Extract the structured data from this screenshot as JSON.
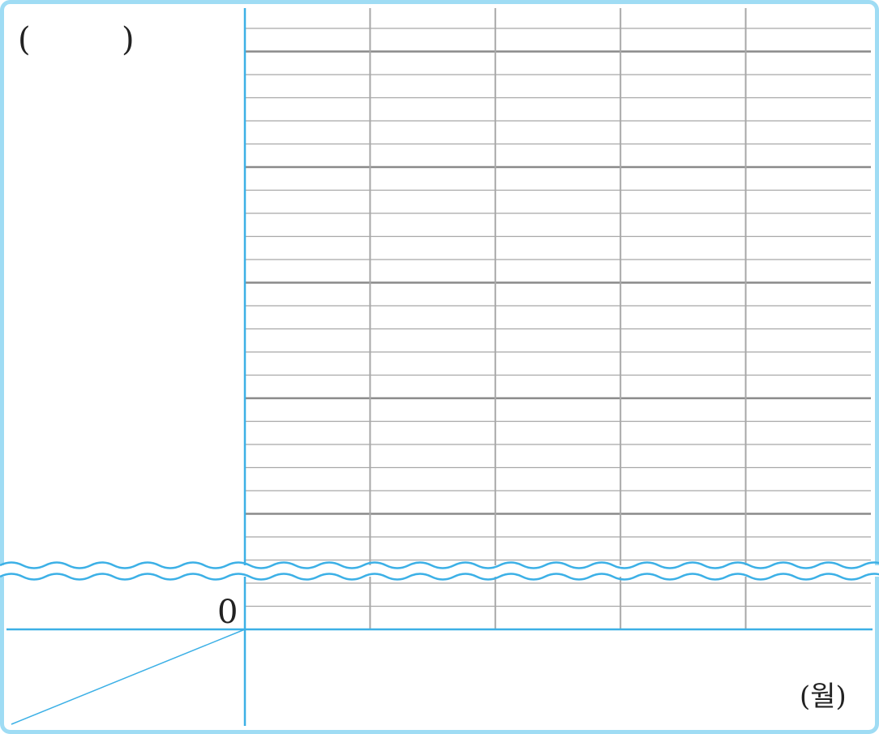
{
  "chart_data": {
    "type": "line",
    "title": "",
    "ylabel_paren_open": "(",
    "ylabel_paren_close": ")",
    "xlabel": "(월)",
    "origin_label": "0",
    "categories": [
      "",
      "",
      "",
      "",
      ""
    ],
    "series": [],
    "axis_break": true,
    "grid": true
  },
  "colors": {
    "frame": "#9fdcf4",
    "axis": "#3cb0e6",
    "grid_major": "#8a8a8a",
    "grid_minor": "#a8a8a8",
    "break_mark": "#3cb0e6"
  }
}
